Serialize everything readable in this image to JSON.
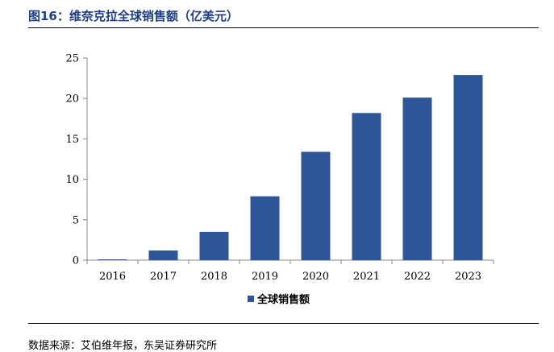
{
  "figure": {
    "title": "图16：维奈克拉全球销售额（亿美元）",
    "source": "数据来源：艾伯维年报，东吴证券研究所"
  },
  "chart_data": {
    "type": "bar",
    "categories": [
      "2016",
      "2017",
      "2018",
      "2019",
      "2020",
      "2021",
      "2022",
      "2023"
    ],
    "series": [
      {
        "name": "全球销售额",
        "values": [
          0.1,
          1.2,
          3.5,
          7.9,
          13.4,
          18.2,
          20.1,
          22.9
        ],
        "color": "#2e5597"
      }
    ],
    "ylim": [
      0,
      25
    ],
    "yticks": [
      0,
      5,
      10,
      15,
      20,
      25
    ],
    "legend": "bottom-center",
    "grid": false
  }
}
